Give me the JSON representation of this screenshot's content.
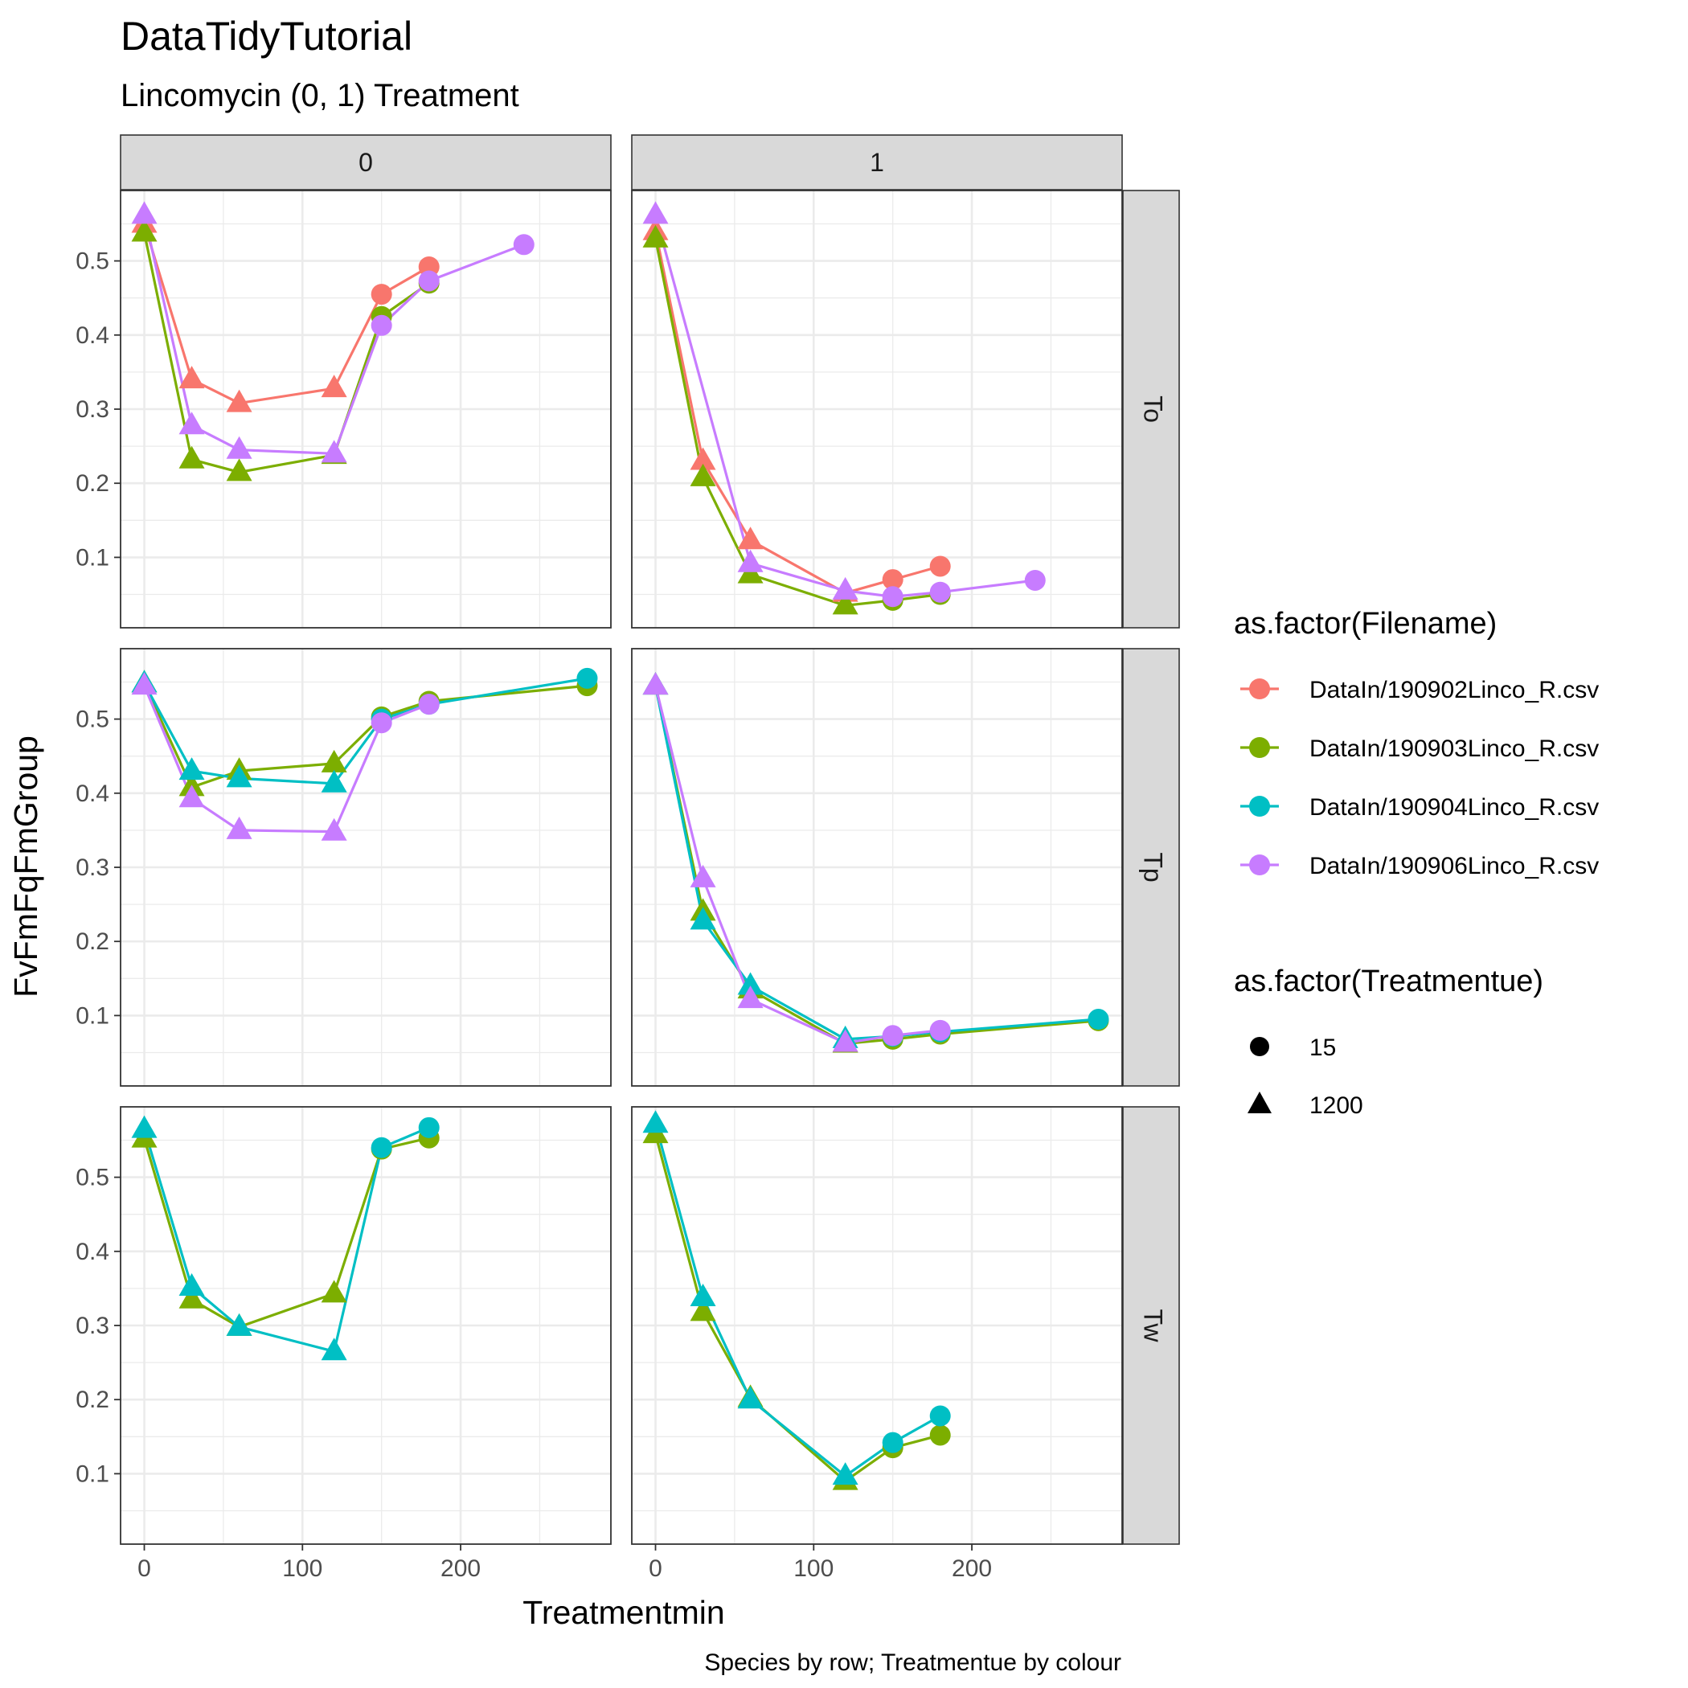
{
  "chart_data": {
    "type": "line",
    "title": "DataTidyTutorial",
    "subtitle": "Lincomycin (0, 1) Treatment",
    "caption": "Species by row; Treatmentue by colour",
    "xlabel": "Treatmentmin",
    "ylabel": "FvFmFqFmGroup",
    "xlim": [
      -15,
      295
    ],
    "ylim": [
      0.005,
      0.595
    ],
    "x_ticks": [
      0,
      100,
      200
    ],
    "y_ticks": [
      0.1,
      0.2,
      0.3,
      0.4,
      0.5
    ],
    "grid": true,
    "legend_position": "right",
    "facet_columns": [
      "0",
      "1"
    ],
    "facet_rows": [
      "To",
      "Tp",
      "Tw"
    ],
    "colour_legend": {
      "title": "as.factor(Filename)",
      "entries": [
        {
          "key": "f1",
          "label": "DataIn/190902Linco_R.csv",
          "color": "#F8766D"
        },
        {
          "key": "f2",
          "label": "DataIn/190903Linco_R.csv",
          "color": "#7CAE00"
        },
        {
          "key": "f3",
          "label": "DataIn/190904Linco_R.csv",
          "color": "#00BFC4"
        },
        {
          "key": "f4",
          "label": "DataIn/190906Linco_R.csv",
          "color": "#C77CFF"
        }
      ]
    },
    "shape_legend": {
      "title": "as.factor(Treatmentue)",
      "entries": [
        {
          "label": "15",
          "shape": "circle"
        },
        {
          "label": "1200",
          "shape": "triangle"
        }
      ]
    },
    "panels": [
      {
        "row": "To",
        "col": "0",
        "series": [
          {
            "file": "f1",
            "points": [
              [
                0,
                0.55,
                "triangle"
              ],
              [
                30,
                0.34,
                "triangle"
              ],
              [
                60,
                0.308,
                "triangle"
              ],
              [
                120,
                0.328,
                "triangle"
              ],
              [
                150,
                0.455,
                "circle"
              ],
              [
                180,
                0.492,
                "circle"
              ]
            ]
          },
          {
            "file": "f2",
            "points": [
              [
                0,
                0.538,
                "triangle"
              ],
              [
                30,
                0.232,
                "triangle"
              ],
              [
                60,
                0.215,
                "triangle"
              ],
              [
                120,
                0.238,
                "triangle"
              ],
              [
                150,
                0.425,
                "circle"
              ],
              [
                180,
                0.47,
                "circle"
              ]
            ]
          },
          {
            "file": "f4",
            "points": [
              [
                0,
                0.562,
                "triangle"
              ],
              [
                30,
                0.278,
                "triangle"
              ],
              [
                60,
                0.245,
                "triangle"
              ],
              [
                120,
                0.24,
                "triangle"
              ],
              [
                150,
                0.413,
                "circle"
              ],
              [
                180,
                0.473,
                "circle"
              ],
              [
                240,
                0.522,
                "circle"
              ]
            ]
          }
        ]
      },
      {
        "row": "To",
        "col": "1",
        "series": [
          {
            "file": "f1",
            "points": [
              [
                0,
                0.54,
                "triangle"
              ],
              [
                30,
                0.23,
                "triangle"
              ],
              [
                60,
                0.123,
                "triangle"
              ],
              [
                120,
                0.052,
                "triangle"
              ],
              [
                150,
                0.07,
                "circle"
              ],
              [
                180,
                0.088,
                "circle"
              ]
            ]
          },
          {
            "file": "f2",
            "points": [
              [
                0,
                0.53,
                "triangle"
              ],
              [
                30,
                0.208,
                "triangle"
              ],
              [
                60,
                0.077,
                "triangle"
              ],
              [
                120,
                0.035,
                "triangle"
              ],
              [
                150,
                0.042,
                "circle"
              ],
              [
                180,
                0.05,
                "circle"
              ]
            ]
          },
          {
            "file": "f4",
            "points": [
              [
                0,
                0.562,
                "triangle"
              ],
              [
                60,
                0.092,
                "triangle"
              ],
              [
                120,
                0.055,
                "triangle"
              ],
              [
                150,
                0.047,
                "circle"
              ],
              [
                180,
                0.053,
                "circle"
              ],
              [
                240,
                0.069,
                "circle"
              ]
            ]
          }
        ]
      },
      {
        "row": "Tp",
        "col": "0",
        "series": [
          {
            "file": "f2",
            "points": [
              [
                0,
                0.548,
                "triangle"
              ],
              [
                30,
                0.408,
                "triangle"
              ],
              [
                60,
                0.43,
                "triangle"
              ],
              [
                120,
                0.44,
                "triangle"
              ],
              [
                150,
                0.503,
                "circle"
              ],
              [
                180,
                0.524,
                "circle"
              ],
              [
                280,
                0.545,
                "circle"
              ]
            ]
          },
          {
            "file": "f3",
            "points": [
              [
                0,
                0.548,
                "triangle"
              ],
              [
                30,
                0.43,
                "triangle"
              ],
              [
                60,
                0.42,
                "triangle"
              ],
              [
                120,
                0.413,
                "triangle"
              ],
              [
                150,
                0.5,
                "circle"
              ],
              [
                180,
                0.52,
                "circle"
              ],
              [
                280,
                0.555,
                "circle"
              ]
            ]
          },
          {
            "file": "f4",
            "points": [
              [
                0,
                0.545,
                "triangle"
              ],
              [
                30,
                0.393,
                "triangle"
              ],
              [
                60,
                0.35,
                "triangle"
              ],
              [
                120,
                0.348,
                "triangle"
              ],
              [
                150,
                0.495,
                "circle"
              ],
              [
                180,
                0.52,
                "circle"
              ]
            ]
          }
        ]
      },
      {
        "row": "Tp",
        "col": "1",
        "series": [
          {
            "file": "f2",
            "points": [
              [
                0,
                0.545,
                "triangle"
              ],
              [
                30,
                0.24,
                "triangle"
              ],
              [
                60,
                0.135,
                "triangle"
              ],
              [
                120,
                0.062,
                "triangle"
              ],
              [
                150,
                0.068,
                "circle"
              ],
              [
                180,
                0.075,
                "circle"
              ],
              [
                280,
                0.093,
                "circle"
              ]
            ]
          },
          {
            "file": "f3",
            "points": [
              [
                0,
                0.545,
                "triangle"
              ],
              [
                30,
                0.228,
                "triangle"
              ],
              [
                60,
                0.14,
                "triangle"
              ],
              [
                120,
                0.068,
                "triangle"
              ],
              [
                150,
                0.072,
                "circle"
              ],
              [
                180,
                0.078,
                "circle"
              ],
              [
                280,
                0.095,
                "circle"
              ]
            ]
          },
          {
            "file": "f4",
            "points": [
              [
                0,
                0.545,
                "triangle"
              ],
              [
                30,
                0.285,
                "triangle"
              ],
              [
                60,
                0.122,
                "triangle"
              ],
              [
                120,
                0.063,
                "triangle"
              ],
              [
                150,
                0.073,
                "circle"
              ],
              [
                180,
                0.08,
                "circle"
              ]
            ]
          }
        ]
      },
      {
        "row": "Tw",
        "col": "0",
        "series": [
          {
            "file": "f2",
            "points": [
              [
                0,
                0.552,
                "triangle"
              ],
              [
                30,
                0.335,
                "triangle"
              ],
              [
                60,
                0.298,
                "triangle"
              ],
              [
                120,
                0.343,
                "triangle"
              ],
              [
                150,
                0.538,
                "circle"
              ],
              [
                180,
                0.553,
                "circle"
              ]
            ]
          },
          {
            "file": "f3",
            "points": [
              [
                0,
                0.565,
                "triangle"
              ],
              [
                30,
                0.352,
                "triangle"
              ],
              [
                60,
                0.298,
                "triangle"
              ],
              [
                120,
                0.265,
                "triangle"
              ],
              [
                150,
                0.54,
                "circle"
              ],
              [
                180,
                0.567,
                "circle"
              ]
            ]
          }
        ]
      },
      {
        "row": "Tw",
        "col": "1",
        "series": [
          {
            "file": "f2",
            "points": [
              [
                0,
                0.558,
                "triangle"
              ],
              [
                30,
                0.318,
                "triangle"
              ],
              [
                60,
                0.202,
                "triangle"
              ],
              [
                120,
                0.09,
                "triangle"
              ],
              [
                150,
                0.135,
                "circle"
              ],
              [
                180,
                0.152,
                "circle"
              ]
            ]
          },
          {
            "file": "f3",
            "points": [
              [
                0,
                0.572,
                "triangle"
              ],
              [
                30,
                0.338,
                "triangle"
              ],
              [
                60,
                0.2,
                "triangle"
              ],
              [
                120,
                0.097,
                "triangle"
              ],
              [
                150,
                0.142,
                "circle"
              ],
              [
                180,
                0.178,
                "circle"
              ]
            ]
          }
        ]
      }
    ]
  }
}
